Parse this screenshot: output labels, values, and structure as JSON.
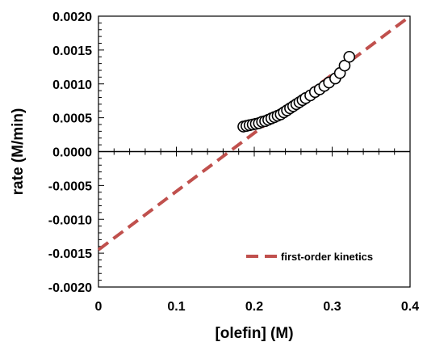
{
  "chart_data": {
    "type": "scatter",
    "xlabel": "[olefin] (M)",
    "ylabel": "rate (M/min)",
    "xlim": [
      0,
      0.4
    ],
    "ylim": [
      -0.002,
      0.002
    ],
    "x_ticks": [
      0,
      0.1,
      0.2,
      0.3,
      0.4
    ],
    "x_tick_labels": [
      "0",
      "0.1",
      "0.2",
      "0.3",
      "0.4"
    ],
    "y_ticks": [
      0.002,
      0.0015,
      0.001,
      0.0005,
      0.0,
      -0.0005,
      -0.001,
      -0.0015,
      -0.002
    ],
    "y_tick_labels": [
      "0.0020",
      "0.0015",
      "0.0010",
      "0.0005",
      "0.0000",
      "-0.0005",
      "-0.0010",
      "-0.0015",
      "-0.0020"
    ],
    "grid": false,
    "series": [
      {
        "type": "scatter",
        "marker_color": "#ffffff",
        "edge_color": "#000000",
        "x": [
          0.186,
          0.19,
          0.194,
          0.198,
          0.202,
          0.206,
          0.21,
          0.214,
          0.218,
          0.222,
          0.226,
          0.23,
          0.234,
          0.238,
          0.242,
          0.246,
          0.25,
          0.254,
          0.258,
          0.262,
          0.266,
          0.272,
          0.278,
          0.284,
          0.29,
          0.296,
          0.304,
          0.31,
          0.316,
          0.322
        ],
        "y": [
          0.00037,
          0.00038,
          0.00039,
          0.0004,
          0.00041,
          0.00042,
          0.00044,
          0.00045,
          0.00047,
          0.00049,
          0.00051,
          0.00053,
          0.00055,
          0.00058,
          0.00061,
          0.00064,
          0.00067,
          0.0007,
          0.00073,
          0.00076,
          0.00079,
          0.00083,
          0.00088,
          0.00092,
          0.00097,
          0.00102,
          0.00108,
          0.00116,
          0.00127,
          0.0014
        ]
      },
      {
        "name": "first-order kinetics",
        "type": "line",
        "dashed": true,
        "color": "#c0504d",
        "x": [
          0,
          0.4
        ],
        "y": [
          -0.00145,
          0.002
        ]
      }
    ],
    "legend": {
      "position": "bottom-right",
      "entries": [
        "first-order kinetics"
      ]
    }
  }
}
